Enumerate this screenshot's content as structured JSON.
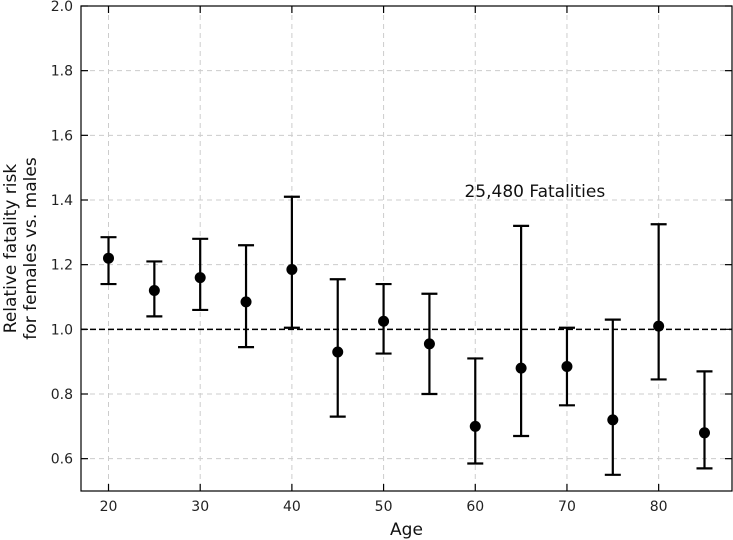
{
  "chart_data": {
    "type": "scatter",
    "title": "",
    "xlabel": "Age",
    "ylabel_line1": "Relative fatality risk",
    "ylabel_line2": "for females vs. males",
    "xlim": [
      17,
      88
    ],
    "ylim": [
      0.5,
      2.0
    ],
    "xticks": [
      20,
      30,
      40,
      50,
      60,
      70,
      80
    ],
    "xtick_labels": [
      "20",
      "30",
      "40",
      "50",
      "60",
      "70",
      "80"
    ],
    "yticks": [
      0.6,
      0.8,
      1.0,
      1.2,
      1.4,
      1.6,
      1.8,
      2.0
    ],
    "ytick_labels": [
      "0.6",
      "0.8",
      "1.0",
      "1.2",
      "1.4",
      "1.6",
      "1.8",
      "2.0"
    ],
    "grid": true,
    "reference_line_y": 1.0,
    "annotation": {
      "text": "25,480 Fatalities",
      "x": 66.5,
      "y": 1.41
    },
    "series": [
      {
        "name": "Relative fatality risk",
        "x": [
          20,
          25,
          30,
          35,
          40,
          45,
          50,
          55,
          60,
          65,
          70,
          75,
          80,
          85
        ],
        "y": [
          1.22,
          1.12,
          1.16,
          1.085,
          1.185,
          0.93,
          1.025,
          0.955,
          0.7,
          0.88,
          0.885,
          0.72,
          1.01,
          0.68
        ],
        "lower": [
          1.14,
          1.04,
          1.06,
          0.945,
          1.005,
          0.73,
          0.925,
          0.8,
          0.585,
          0.67,
          0.765,
          0.55,
          0.845,
          0.57
        ],
        "upper": [
          1.285,
          1.21,
          1.28,
          1.26,
          1.41,
          1.155,
          1.14,
          1.11,
          0.91,
          1.32,
          1.005,
          1.03,
          1.325,
          0.87
        ]
      }
    ]
  }
}
